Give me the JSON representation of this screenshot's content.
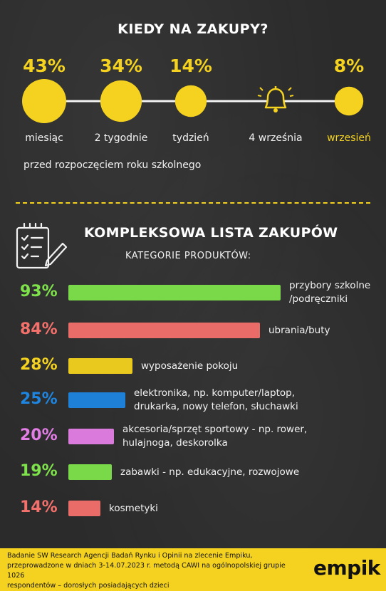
{
  "top_section": {
    "title": "KIEDY NA ZAKUPY?",
    "note": "przed rozpoczęciem roku szkolnego"
  },
  "chart_data": [
    {
      "type": "scatter",
      "title": "KIEDY NA ZAKUPY?",
      "categories": [
        "miesiąc",
        "2 tygodnie",
        "tydzień",
        "4 września",
        "wrzesień"
      ],
      "points": [
        {
          "label": "miesiąc",
          "value": 43,
          "value_label": "43%"
        },
        {
          "label": "2 tygodnie",
          "value": 34,
          "value_label": "34%"
        },
        {
          "label": "tydzień",
          "value": 14,
          "value_label": "14%"
        },
        {
          "label": "4 września",
          "value": null,
          "value_label": "",
          "icon": "bell-icon"
        },
        {
          "label": "wrzesień",
          "value": 8,
          "value_label": "8%",
          "highlight": true
        }
      ],
      "color": "#f4d21f"
    },
    {
      "type": "bar",
      "orientation": "horizontal",
      "title": "KOMPLEKSOWA LISTA ZAKUPÓW",
      "subtitle": "KATEGORIE PRODUKTÓW:",
      "xlim": [
        0,
        100
      ],
      "categories": [
        [
          "przybory szkolne",
          "/podręczniki"
        ],
        [
          "ubrania/buty"
        ],
        [
          "wyposażenie pokoju"
        ],
        [
          "elektronika, np. komputer/laptop,",
          "drukarka, nowy telefon, słuchawki"
        ],
        [
          "akcesoria/sprzęt sportowy - np. rower,",
          "hulajnoga, deskorolka"
        ],
        [
          "zabawki - np. edukacyjne, rozwojowe"
        ],
        [
          "kosmetyki"
        ]
      ],
      "values": [
        93,
        84,
        28,
        25,
        20,
        19,
        14
      ],
      "value_labels": [
        "93%",
        "84%",
        "28%",
        "25%",
        "20%",
        "19%",
        "14%"
      ],
      "colors": [
        "#7ee34b",
        "#f3706b",
        "#f4d21f",
        "#1e86e0",
        "#e37ee6",
        "#7ee34b",
        "#f3706b"
      ]
    }
  ],
  "footer": {
    "lines": [
      "Badanie SW Research Agencji Badań Rynku i Opinii na zlecenie Empiku,",
      "przeprowadzone w dniach 3-14.07.2023 r. metodą CAWI na ogólnopolskiej grupie 1026",
      "respondentów – dorosłych posiadających dzieci"
    ],
    "brand": "empik"
  }
}
